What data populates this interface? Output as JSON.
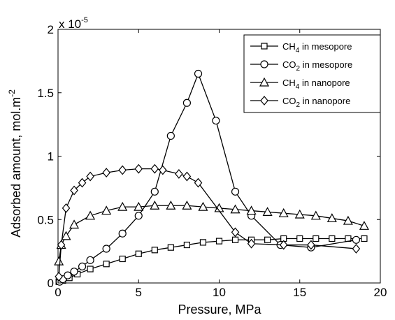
{
  "chart_data": {
    "type": "line",
    "xlabel": "Pressure, MPa",
    "ylabel": "Adsorbed amount, mol.m",
    "ylabel_exponent": "-2",
    "y_multiplier_base": "x 10",
    "y_multiplier_exponent": "-5",
    "xlim": [
      0,
      20
    ],
    "ylim": [
      0,
      2
    ],
    "xticks": [
      0,
      5,
      10,
      15,
      20
    ],
    "yticks": [
      0,
      0.5,
      1,
      1.5,
      2
    ],
    "xtick_labels": [
      "0",
      "5",
      "10",
      "15",
      "20"
    ],
    "ytick_labels": [
      "0",
      "0.5",
      "1",
      "1.5",
      "2"
    ],
    "grid": false,
    "legend_position": "top-right",
    "series": [
      {
        "name": "CH4 in mesopore",
        "legend_main": "CH",
        "legend_sub": "4",
        "legend_rest": " in mesopore",
        "marker": "square",
        "x": [
          0.05,
          0.3,
          0.7,
          1.2,
          2.0,
          3.0,
          4.0,
          5.0,
          6.0,
          7.0,
          8.0,
          9.0,
          10.0,
          11.0,
          12.0,
          13.0,
          14.0,
          15.0,
          16.0,
          17.0,
          18.0,
          19.0
        ],
        "y": [
          0.01,
          0.02,
          0.04,
          0.07,
          0.11,
          0.15,
          0.19,
          0.23,
          0.26,
          0.28,
          0.3,
          0.32,
          0.33,
          0.34,
          0.34,
          0.34,
          0.35,
          0.35,
          0.35,
          0.35,
          0.35,
          0.35
        ]
      },
      {
        "name": "CO2 in mesopore",
        "legend_main": "CO",
        "legend_sub": "2",
        "legend_rest": " in mesopore",
        "marker": "circle",
        "x": [
          0.1,
          0.3,
          0.6,
          1.0,
          1.5,
          2.0,
          3.0,
          4.0,
          5.0,
          6.0,
          7.0,
          8.0,
          8.7,
          9.8,
          11.0,
          12.0,
          13.8,
          15.7,
          18.5
        ],
        "y": [
          0.01,
          0.03,
          0.06,
          0.09,
          0.13,
          0.18,
          0.27,
          0.39,
          0.53,
          0.72,
          1.16,
          1.42,
          1.65,
          1.28,
          0.72,
          0.53,
          0.3,
          0.28,
          0.34
        ]
      },
      {
        "name": "CH4 in nanopore",
        "legend_main": "CH",
        "legend_sub": "4",
        "legend_rest": " in nanopore",
        "marker": "triangle",
        "x": [
          0.05,
          0.2,
          0.5,
          1.0,
          2.0,
          3.0,
          4.0,
          5.0,
          6.0,
          7.0,
          8.0,
          9.0,
          10.0,
          11.0,
          12.0,
          13.0,
          14.0,
          15.0,
          16.0,
          17.0,
          18.0,
          19.0
        ],
        "y": [
          0.17,
          0.3,
          0.37,
          0.46,
          0.53,
          0.57,
          0.6,
          0.6,
          0.61,
          0.61,
          0.61,
          0.6,
          0.59,
          0.58,
          0.57,
          0.56,
          0.55,
          0.54,
          0.53,
          0.51,
          0.49,
          0.45
        ]
      },
      {
        "name": "CO2 in nanopore",
        "legend_main": "CO",
        "legend_sub": "2",
        "legend_rest": " in nanopore",
        "marker": "diamond",
        "x": [
          0.05,
          0.2,
          0.5,
          1.0,
          1.5,
          2.0,
          3.0,
          4.0,
          5.0,
          6.0,
          6.5,
          7.5,
          8.0,
          8.7,
          11.0,
          12.0,
          14.0,
          15.7,
          18.5
        ],
        "y": [
          0.05,
          0.3,
          0.59,
          0.73,
          0.79,
          0.84,
          0.87,
          0.89,
          0.9,
          0.9,
          0.89,
          0.86,
          0.84,
          0.79,
          0.4,
          0.31,
          0.3,
          0.3,
          0.27
        ]
      }
    ]
  }
}
